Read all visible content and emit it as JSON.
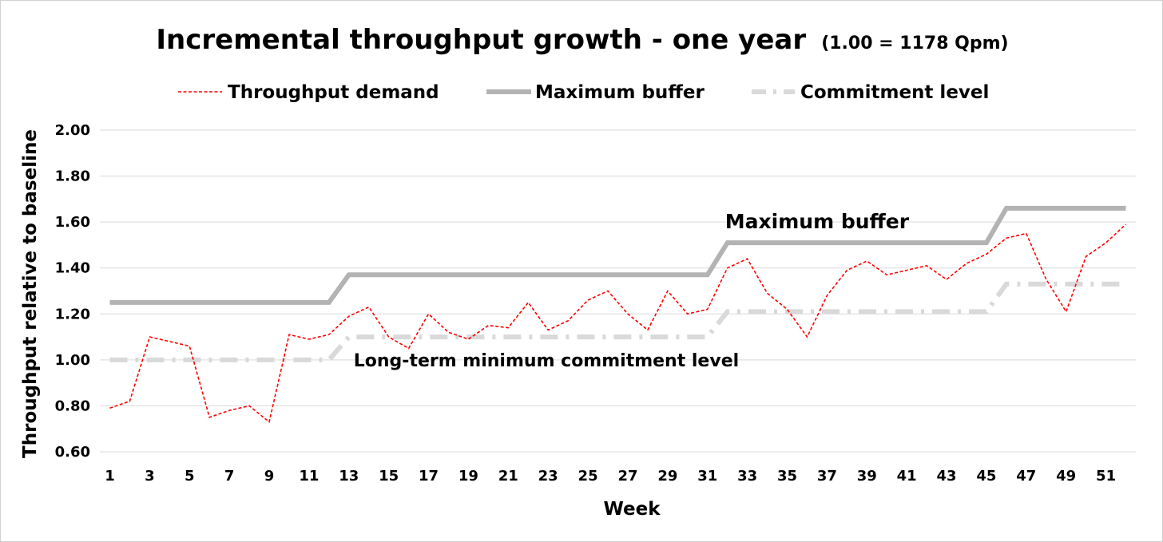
{
  "chart_data": {
    "type": "line",
    "title": "Incremental throughput growth - one year",
    "subtitle": "(1.00 = 1178 Qpm)",
    "xlabel": "Week",
    "ylabel": "Throughput relative to baseline",
    "ylim": [
      0.6,
      2.0
    ],
    "yticks": [
      "0.60",
      "0.80",
      "1.00",
      "1.20",
      "1.40",
      "1.60",
      "1.80",
      "2.00"
    ],
    "xticks": [
      "1",
      "3",
      "5",
      "7",
      "9",
      "11",
      "13",
      "15",
      "17",
      "19",
      "21",
      "23",
      "25",
      "27",
      "29",
      "31",
      "33",
      "35",
      "37",
      "39",
      "41",
      "43",
      "45",
      "47",
      "49",
      "51"
    ],
    "grid": true,
    "legend_position": "top",
    "x": [
      1,
      2,
      3,
      4,
      5,
      6,
      7,
      8,
      9,
      10,
      11,
      12,
      13,
      14,
      15,
      16,
      17,
      18,
      19,
      20,
      21,
      22,
      23,
      24,
      25,
      26,
      27,
      28,
      29,
      30,
      31,
      32,
      33,
      34,
      35,
      36,
      37,
      38,
      39,
      40,
      41,
      42,
      43,
      44,
      45,
      46,
      47,
      48,
      49,
      50,
      51,
      52
    ],
    "series": [
      {
        "name": "Throughput demand",
        "color": "#ff0000",
        "style": "dashed",
        "values": [
          0.79,
          0.82,
          1.1,
          1.08,
          1.06,
          0.75,
          0.78,
          0.8,
          0.73,
          1.11,
          1.09,
          1.11,
          1.19,
          1.23,
          1.1,
          1.05,
          1.2,
          1.12,
          1.09,
          1.15,
          1.14,
          1.25,
          1.13,
          1.17,
          1.26,
          1.3,
          1.2,
          1.13,
          1.3,
          1.2,
          1.22,
          1.4,
          1.44,
          1.29,
          1.22,
          1.1,
          1.28,
          1.39,
          1.43,
          1.37,
          1.39,
          1.41,
          1.35,
          1.42,
          1.46,
          1.53,
          1.55,
          1.35,
          1.21,
          1.45,
          1.51,
          1.59
        ]
      },
      {
        "name": "Maximum buffer",
        "color": "#b3b3b3",
        "style": "solid",
        "values": [
          1.25,
          1.25,
          1.25,
          1.25,
          1.25,
          1.25,
          1.25,
          1.25,
          1.25,
          1.25,
          1.25,
          1.25,
          1.37,
          1.37,
          1.37,
          1.37,
          1.37,
          1.37,
          1.37,
          1.37,
          1.37,
          1.37,
          1.37,
          1.37,
          1.37,
          1.37,
          1.37,
          1.37,
          1.37,
          1.37,
          1.37,
          1.51,
          1.51,
          1.51,
          1.51,
          1.51,
          1.51,
          1.51,
          1.51,
          1.51,
          1.51,
          1.51,
          1.51,
          1.51,
          1.51,
          1.66,
          1.66,
          1.66,
          1.66,
          1.66,
          1.66,
          1.66
        ]
      },
      {
        "name": "Commitment level",
        "color": "#d9d9d9",
        "style": "dash-dot",
        "values": [
          1.0,
          1.0,
          1.0,
          1.0,
          1.0,
          1.0,
          1.0,
          1.0,
          1.0,
          1.0,
          1.0,
          1.0,
          1.1,
          1.1,
          1.1,
          1.1,
          1.1,
          1.1,
          1.1,
          1.1,
          1.1,
          1.1,
          1.1,
          1.1,
          1.1,
          1.1,
          1.1,
          1.1,
          1.1,
          1.1,
          1.1,
          1.21,
          1.21,
          1.21,
          1.21,
          1.21,
          1.21,
          1.21,
          1.21,
          1.21,
          1.21,
          1.21,
          1.21,
          1.21,
          1.21,
          1.33,
          1.33,
          1.33,
          1.33,
          1.33,
          1.33,
          1.33
        ]
      }
    ],
    "annotations": [
      {
        "text": "Maximum buffer",
        "x": 36.5,
        "y": 1.6
      },
      {
        "text": "Long-term minimum commitment level",
        "x": 13,
        "y": 1.0
      }
    ]
  }
}
